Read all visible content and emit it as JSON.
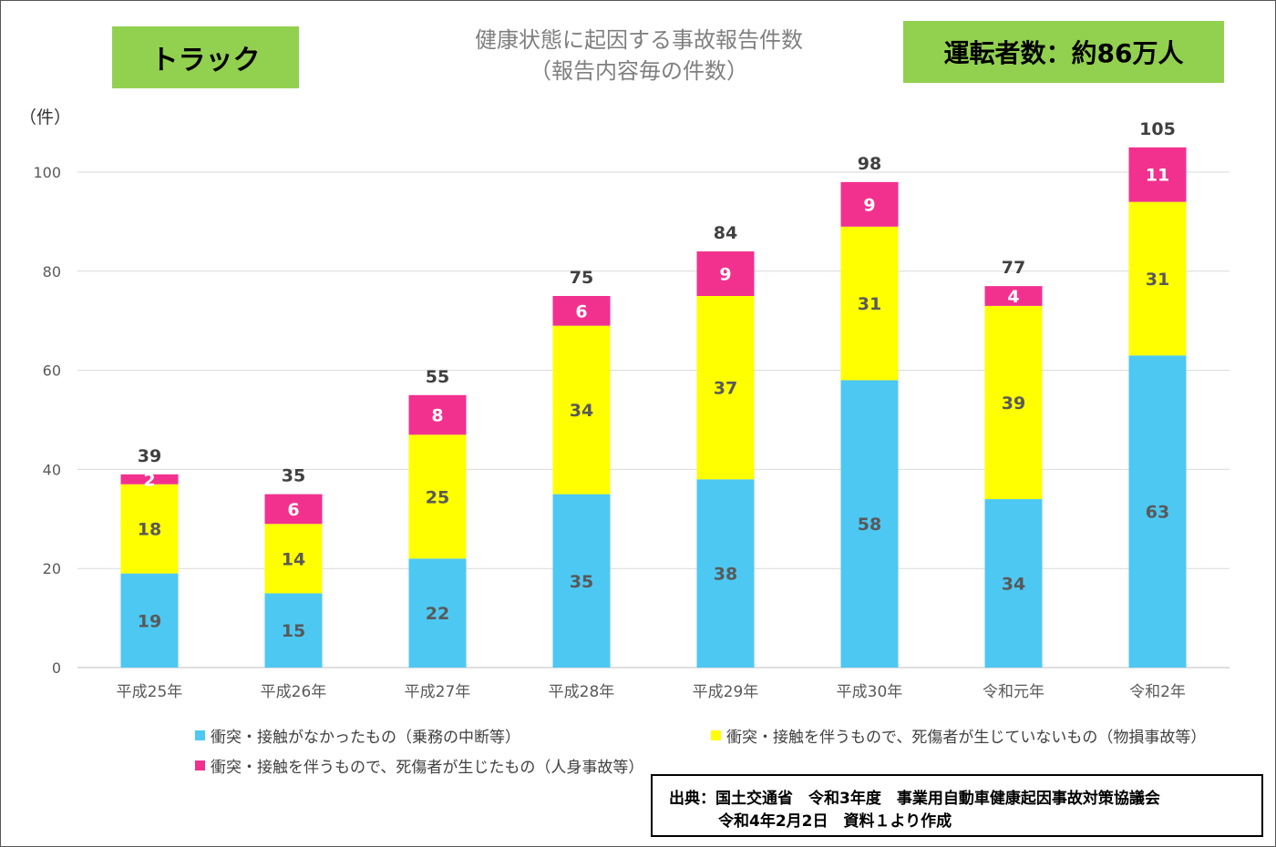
{
  "header": {
    "vehicle_label": "トラック",
    "title_line1": "健康状態に起因する事故報告件数",
    "title_line2": "（報告内容毎の件数）",
    "drivers_label": "運転者数：約86万人"
  },
  "source": {
    "line1": "出典：国土交通省　令和3年度　事業用自動車健康起因事故対策協議会",
    "line2": "令和4年2月2日　資料１より作成"
  },
  "chart_data": {
    "type": "bar",
    "stacked": true,
    "unit_label": "（件）",
    "categories": [
      "平成25年",
      "平成26年",
      "平成27年",
      "平成28年",
      "平成29年",
      "平成30年",
      "令和元年",
      "令和2年"
    ],
    "series": [
      {
        "name": "衝突・接触がなかったもの（乗務の中断等）",
        "color": "#4dc8f2",
        "values": [
          19,
          15,
          22,
          35,
          38,
          58,
          34,
          63
        ]
      },
      {
        "name": "衝突・接触を伴うもので、死傷者が生じていないもの（物損事故等）",
        "color": "#ffff00",
        "values": [
          18,
          14,
          25,
          34,
          37,
          31,
          39,
          31
        ]
      },
      {
        "name": "衝突・接触を伴うもので、死傷者が生じたもの（人身事故等）",
        "color": "#f2318f",
        "values": [
          2,
          6,
          8,
          6,
          9,
          9,
          4,
          11
        ]
      }
    ],
    "totals": [
      39,
      35,
      55,
      75,
      84,
      98,
      77,
      105
    ],
    "ylim": [
      0,
      110
    ],
    "yticks": [
      0,
      20,
      40,
      60,
      80,
      100
    ],
    "grid": true,
    "legend_position": "bottom"
  }
}
